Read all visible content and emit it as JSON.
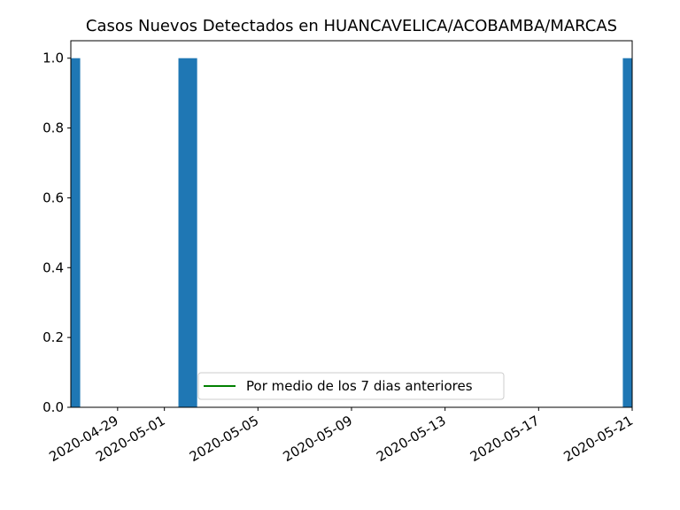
{
  "chart_data": {
    "type": "bar",
    "title": "Casos Nuevos Detectados en HUANCAVELICA/ACOBAMBA/MARCAS",
    "xlabel": "",
    "ylabel": "",
    "x_axis_type": "date",
    "xlim": [
      "2020-04-27",
      "2020-05-21"
    ],
    "ylim": [
      0,
      1.05
    ],
    "x_ticks": [
      "2020-04-29",
      "2020-05-01",
      "2020-05-05",
      "2020-05-09",
      "2020-05-13",
      "2020-05-17",
      "2020-05-21"
    ],
    "y_ticks": [
      "0.0",
      "0.2",
      "0.4",
      "0.6",
      "0.8",
      "1.0"
    ],
    "bars": [
      {
        "date": "2020-04-27",
        "value": 1
      },
      {
        "date": "2020-05-02",
        "value": 1
      },
      {
        "date": "2020-05-21",
        "value": 1
      }
    ],
    "series": [
      {
        "name": "Por medio de los 7 dias anteriores",
        "type": "line",
        "color": "#008000",
        "values": []
      }
    ],
    "bar_color": "#1f77b4",
    "legend_position": "lower center",
    "grid": false
  }
}
